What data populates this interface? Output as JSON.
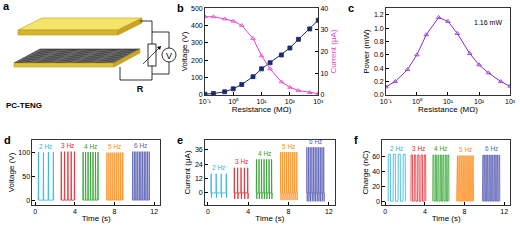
{
  "diagram": {
    "title": "a",
    "device_label": "PC-TENG",
    "meter": "V",
    "resistor": "R"
  },
  "chart_data": [
    {
      "type": "line",
      "title": "b",
      "xlabel": "Resistance (MΩ)",
      "ylabel": "Voltage (V)",
      "y2label": "Current (μA)",
      "log": "x",
      "grid": false,
      "xlim": [
        0.1,
        1000
      ],
      "xticks": [
        {
          "value": 0.1,
          "label": "10⁻¹"
        },
        {
          "value": 1,
          "label": "10⁰"
        },
        {
          "value": 10,
          "label": "10¹"
        },
        {
          "value": 100,
          "label": "10²"
        },
        {
          "value": 1000,
          "label": "10³"
        }
      ],
      "ylim": [
        0,
        500
      ],
      "yticks": [
        0,
        100,
        200,
        300,
        400,
        500
      ],
      "y2lim": [
        0,
        40
      ],
      "y2ticks": [
        0,
        10,
        20,
        30,
        40
      ],
      "x": [
        0.1,
        0.2,
        0.5,
        1,
        2,
        5,
        10,
        20,
        50,
        100,
        200,
        500,
        1000
      ],
      "series": [
        {
          "color": "#1a2a6c",
          "marker": "square",
          "values": [
            4,
            8,
            18,
            35,
            60,
            105,
            150,
            185,
            230,
            270,
            320,
            380,
            430
          ]
        },
        {
          "color": "#e83fcf",
          "marker": "triangle-up-open",
          "axis": "y2",
          "values": [
            36,
            36,
            35,
            34,
            32,
            26,
            18,
            12,
            6,
            3.5,
            2,
            1.1,
            0.6
          ]
        }
      ]
    },
    {
      "type": "line",
      "title": "c",
      "xlabel": "Resistance (MΩ)",
      "ylabel": "Power (mW)",
      "log": "x",
      "grid": false,
      "annotations": [
        "1.16 mW"
      ],
      "xlim": [
        0.1,
        1000
      ],
      "xticks": [
        {
          "value": 0.1,
          "label": "10⁻¹"
        },
        {
          "value": 1,
          "label": "10⁰"
        },
        {
          "value": 10,
          "label": "10¹"
        },
        {
          "value": 100,
          "label": "10²"
        },
        {
          "value": 1000,
          "label": "10³"
        }
      ],
      "ylim": [
        0,
        1.3
      ],
      "yticks": [
        {
          "value": 0,
          "label": "0.0"
        },
        0.2,
        0.4,
        0.6,
        0.8,
        {
          "value": 1,
          "label": "1.0"
        },
        1.2
      ],
      "x": [
        0.1,
        0.2,
        0.5,
        1,
        2,
        5,
        10,
        20,
        50,
        100,
        200,
        500,
        1000
      ],
      "series": [
        {
          "color": "#8b2fc9",
          "marker": "triangle-up-open",
          "values": [
            0.12,
            0.2,
            0.38,
            0.6,
            0.9,
            1.16,
            1.1,
            0.92,
            0.62,
            0.45,
            0.33,
            0.2,
            0.13
          ]
        }
      ]
    },
    {
      "type": "line",
      "title": "d",
      "xlabel": "Time (s)",
      "ylabel": "Voltage (V)",
      "grid": false,
      "xlim": [
        -0.3,
        12.6
      ],
      "xticks": [
        0,
        4,
        8,
        12
      ],
      "ylim": [
        -10,
        125
      ],
      "yticks": [
        0,
        50,
        100
      ],
      "series": [
        {
          "name": "2 Hz",
          "color": "#29b5d8",
          "x": [
            0.3,
            0.33,
            0.36,
            0.8,
            0.83,
            0.86,
            1.3,
            1.33,
            1.36,
            1.8,
            1.83,
            1.86
          ],
          "values": [
            0,
            100,
            0,
            0,
            99,
            0,
            0,
            100,
            0,
            0,
            100,
            0
          ]
        },
        {
          "name": "3 Hz",
          "color": "#e3262f",
          "x": [
            2.6,
            2.63,
            2.66,
            2.93,
            2.96,
            2.99,
            3.27,
            3.3,
            3.33,
            3.6,
            3.63,
            3.66,
            3.93,
            3.96,
            3.99
          ],
          "values": [
            0,
            101,
            0,
            0,
            101,
            0,
            0,
            101,
            0,
            0,
            101,
            0,
            0,
            101,
            0
          ]
        },
        {
          "name": "4 Hz",
          "color": "#2aa02a",
          "x": [
            4.8,
            4.83,
            4.86,
            5.05,
            5.08,
            5.11,
            5.3,
            5.33,
            5.36,
            5.55,
            5.58,
            5.61,
            5.8,
            5.83,
            5.86,
            6.05,
            6.08,
            6.11,
            6.3,
            6.33,
            6.36
          ],
          "values": [
            0,
            100,
            0,
            0,
            100,
            0,
            0,
            100,
            0,
            0,
            100,
            0,
            0,
            100,
            0,
            0,
            100,
            0,
            0,
            100,
            0
          ]
        },
        {
          "name": "5 Hz",
          "color": "#ff8c1a",
          "x": [
            7.2,
            7.23,
            7.26,
            7.4,
            7.43,
            7.46,
            7.6,
            7.63,
            7.66,
            7.8,
            7.83,
            7.86,
            8.0,
            8.03,
            8.06,
            8.2,
            8.23,
            8.26,
            8.4,
            8.43,
            8.46,
            8.6,
            8.63,
            8.66,
            8.8,
            8.83,
            8.86
          ],
          "values": [
            0,
            99,
            0,
            0,
            99,
            0,
            0,
            99,
            0,
            0,
            99,
            0,
            0,
            99,
            0,
            0,
            99,
            0,
            0,
            99,
            0,
            0,
            99,
            0,
            0,
            99,
            0
          ]
        },
        {
          "name": "6 Hz",
          "color": "#5b5fb5",
          "x": [
            9.8,
            9.83,
            9.86,
            9.97,
            10.0,
            10.03,
            10.13,
            10.16,
            10.19,
            10.3,
            10.33,
            10.36,
            10.47,
            10.5,
            10.53,
            10.63,
            10.66,
            10.69,
            10.8,
            10.83,
            10.86,
            10.97,
            11.0,
            11.03,
            11.13,
            11.16,
            11.19,
            11.3,
            11.33,
            11.36,
            11.47,
            11.5,
            11.53
          ],
          "values": [
            0,
            101,
            0,
            0,
            101,
            0,
            0,
            101,
            0,
            0,
            101,
            0,
            0,
            101,
            0,
            0,
            101,
            0,
            0,
            101,
            0,
            0,
            101,
            0,
            0,
            101,
            0,
            0,
            101,
            0,
            0,
            101,
            0
          ]
        }
      ]
    },
    {
      "type": "line",
      "title": "e",
      "xlabel": "Time (s)",
      "ylabel": "Current (μA)",
      "grid": false,
      "xlim": [
        -0.3,
        12.6
      ],
      "xticks": [
        0,
        4,
        8,
        12
      ],
      "ylim": [
        -10,
        44
      ],
      "yticks": [
        0,
        12,
        24,
        36
      ],
      "series": [
        {
          "name": "2 Hz",
          "color": "#29b5d8",
          "x": [
            0.3,
            0.32,
            0.35,
            0.38,
            0.8,
            0.82,
            0.85,
            0.88,
            1.3,
            1.32,
            1.35,
            1.38,
            1.8,
            1.82,
            1.85,
            1.88
          ],
          "values": [
            0,
            16,
            -4,
            0,
            0,
            16,
            -4,
            0,
            0,
            16,
            -4,
            0,
            0,
            16,
            -4,
            0
          ]
        },
        {
          "name": "3 Hz",
          "color": "#e3262f",
          "x": [
            2.6,
            2.62,
            2.65,
            2.68,
            2.93,
            2.95,
            2.98,
            3.01,
            3.27,
            3.29,
            3.32,
            3.35,
            3.6,
            3.62,
            3.65,
            3.68,
            3.93,
            3.95,
            3.98,
            4.01
          ],
          "values": [
            0,
            21,
            -5,
            0,
            0,
            21,
            -5,
            0,
            0,
            21,
            -5,
            0,
            0,
            21,
            -5,
            0,
            0,
            21,
            -5,
            0
          ]
        },
        {
          "name": "4 Hz",
          "color": "#2aa02a",
          "x": [
            4.8,
            4.82,
            4.85,
            4.88,
            5.05,
            5.07,
            5.1,
            5.13,
            5.3,
            5.32,
            5.35,
            5.38,
            5.55,
            5.57,
            5.6,
            5.63,
            5.8,
            5.82,
            5.85,
            5.88,
            6.05,
            6.07,
            6.1,
            6.13,
            6.3,
            6.32,
            6.35,
            6.38
          ],
          "values": [
            0,
            28,
            -5,
            0,
            0,
            28,
            -5,
            0,
            0,
            28,
            -5,
            0,
            0,
            28,
            -5,
            0,
            0,
            28,
            -5,
            0,
            0,
            28,
            -5,
            0,
            0,
            28,
            -5,
            0
          ]
        },
        {
          "name": "5 Hz",
          "color": "#ff8c1a",
          "x": [
            7.2,
            7.22,
            7.25,
            7.28,
            7.4,
            7.42,
            7.45,
            7.48,
            7.6,
            7.62,
            7.65,
            7.68,
            7.8,
            7.82,
            7.85,
            7.88,
            8.0,
            8.02,
            8.05,
            8.08,
            8.2,
            8.22,
            8.25,
            8.28,
            8.4,
            8.42,
            8.45,
            8.48,
            8.6,
            8.62,
            8.65,
            8.68,
            8.8,
            8.82,
            8.85,
            8.88
          ],
          "values": [
            0,
            34,
            -6,
            0,
            0,
            34,
            -6,
            0,
            0,
            34,
            -6,
            0,
            0,
            34,
            -6,
            0,
            0,
            34,
            -6,
            0,
            0,
            34,
            -6,
            0,
            0,
            34,
            -6,
            0,
            0,
            34,
            -6,
            0,
            0,
            34,
            -6,
            0
          ]
        },
        {
          "name": "6 Hz",
          "color": "#5b5fb5",
          "x": [
            9.8,
            9.82,
            9.85,
            9.88,
            9.97,
            9.99,
            10.02,
            10.05,
            10.13,
            10.15,
            10.18,
            10.21,
            10.3,
            10.32,
            10.35,
            10.38,
            10.47,
            10.49,
            10.52,
            10.55,
            10.63,
            10.65,
            10.68,
            10.71,
            10.8,
            10.82,
            10.85,
            10.88,
            10.97,
            10.99,
            11.02,
            11.05,
            11.13,
            11.15,
            11.18,
            11.21,
            11.3,
            11.32,
            11.35,
            11.38,
            11.47,
            11.49,
            11.52,
            11.55
          ],
          "values": [
            0,
            38,
            -7,
            0,
            0,
            38,
            -7,
            0,
            0,
            38,
            -7,
            0,
            0,
            38,
            -7,
            0,
            0,
            38,
            -7,
            0,
            0,
            38,
            -7,
            0,
            0,
            38,
            -7,
            0,
            0,
            38,
            -7,
            0,
            0,
            38,
            -7,
            0,
            0,
            38,
            -7,
            0,
            0,
            38,
            -7,
            0
          ]
        }
      ]
    },
    {
      "type": "line",
      "title": "f",
      "xlabel": "Time (s)",
      "ylabel": "Charge (nC)",
      "grid": false,
      "xlim": [
        -0.3,
        12.6
      ],
      "xticks": [
        0,
        4,
        8,
        12
      ],
      "ylim": [
        -5,
        82
      ],
      "yticks": [
        0,
        20,
        40,
        60
      ],
      "series": [
        {
          "name": "2 Hz",
          "color": "#29b5d8",
          "x": [
            0.3,
            0.32,
            0.52,
            0.54,
            0.8,
            0.82,
            1.02,
            1.04,
            1.3,
            1.32,
            1.52,
            1.54,
            1.8,
            1.82,
            2.02,
            2.04
          ],
          "values": [
            0,
            63,
            63,
            0,
            0,
            63,
            63,
            0,
            0,
            63,
            63,
            0,
            0,
            63,
            63,
            0
          ]
        },
        {
          "name": "3 Hz",
          "color": "#e3262f",
          "x": [
            2.6,
            2.62,
            2.75,
            2.77,
            2.93,
            2.95,
            3.08,
            3.1,
            3.27,
            3.29,
            3.42,
            3.44,
            3.6,
            3.62,
            3.75,
            3.77,
            3.93,
            3.95,
            4.08,
            4.1
          ],
          "values": [
            0,
            62,
            62,
            0,
            0,
            62,
            62,
            0,
            0,
            62,
            62,
            0,
            0,
            62,
            62,
            0,
            0,
            62,
            62,
            0
          ]
        },
        {
          "name": "4 Hz",
          "color": "#2aa02a",
          "x": [
            4.8,
            4.82,
            4.91,
            4.93,
            5.05,
            5.07,
            5.16,
            5.18,
            5.3,
            5.32,
            5.41,
            5.43,
            5.55,
            5.57,
            5.66,
            5.68,
            5.8,
            5.82,
            5.91,
            5.93,
            6.05,
            6.07,
            6.16,
            6.18,
            6.3,
            6.32,
            6.41,
            6.43
          ],
          "values": [
            0,
            62,
            62,
            0,
            0,
            62,
            62,
            0,
            0,
            62,
            62,
            0,
            0,
            62,
            62,
            0,
            0,
            62,
            62,
            0,
            0,
            62,
            62,
            0,
            0,
            62,
            62,
            0
          ]
        },
        {
          "name": "5 Hz",
          "color": "#ff8c1a",
          "x": [
            7.2,
            7.22,
            7.29,
            7.31,
            7.4,
            7.42,
            7.49,
            7.51,
            7.6,
            7.62,
            7.69,
            7.71,
            7.8,
            7.82,
            7.89,
            7.91,
            8.0,
            8.02,
            8.09,
            8.11,
            8.2,
            8.22,
            8.29,
            8.31,
            8.4,
            8.42,
            8.49,
            8.51,
            8.6,
            8.62,
            8.69,
            8.71,
            8.8,
            8.82,
            8.89,
            8.91
          ],
          "values": [
            0,
            61,
            61,
            0,
            0,
            61,
            61,
            0,
            0,
            61,
            61,
            0,
            0,
            61,
            61,
            0,
            0,
            61,
            61,
            0,
            0,
            61,
            61,
            0,
            0,
            61,
            61,
            0,
            0,
            61,
            61,
            0,
            0,
            61,
            61,
            0
          ]
        },
        {
          "name": "6 Hz",
          "color": "#5b5fb5",
          "x": [
            9.8,
            9.82,
            9.87,
            9.89,
            9.97,
            9.99,
            10.04,
            10.06,
            10.13,
            10.15,
            10.2,
            10.22,
            10.3,
            10.32,
            10.37,
            10.39,
            10.47,
            10.49,
            10.54,
            10.56,
            10.63,
            10.65,
            10.7,
            10.72,
            10.8,
            10.82,
            10.87,
            10.89,
            10.97,
            10.99,
            11.04,
            11.06,
            11.13,
            11.15,
            11.2,
            11.22,
            11.3,
            11.32,
            11.37,
            11.39,
            11.47,
            11.49,
            11.54,
            11.56
          ],
          "values": [
            0,
            62,
            62,
            0,
            0,
            62,
            62,
            0,
            0,
            62,
            62,
            0,
            0,
            62,
            62,
            0,
            0,
            62,
            62,
            0,
            0,
            62,
            62,
            0,
            0,
            62,
            62,
            0,
            0,
            62,
            62,
            0,
            0,
            62,
            62,
            0,
            0,
            62,
            62,
            0,
            0,
            62,
            62,
            0
          ]
        }
      ]
    }
  ]
}
